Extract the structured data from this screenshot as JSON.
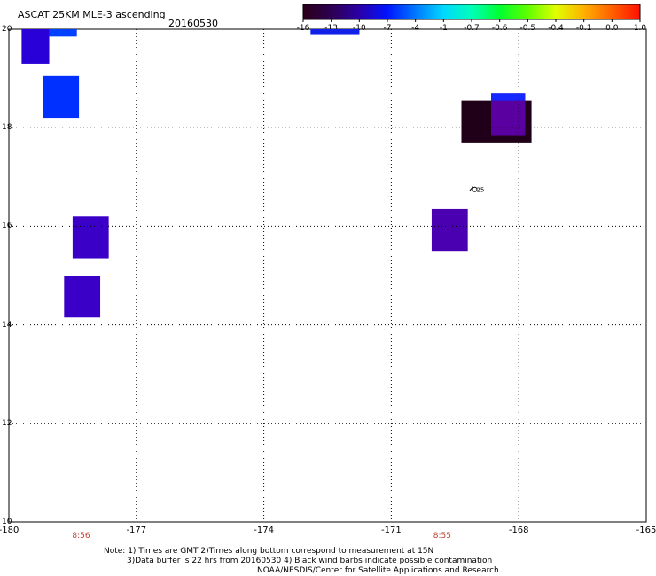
{
  "header": {
    "title": "ASCAT 25KM MLE-3 ascending",
    "date": "20160530"
  },
  "colorbar": {
    "labels": [
      "-16",
      "-13",
      "-10",
      "-7",
      "-4",
      "-1",
      "-0.7",
      "-0.6",
      "-0.5",
      "-0.4",
      "-0.1",
      "0.0",
      "1.0"
    ],
    "colors": [
      "#2a0018",
      "#2c0050",
      "#2a00a8",
      "#0014ff",
      "#0078ff",
      "#00d8ff",
      "#00ffb8",
      "#00ff30",
      "#60ff00",
      "#e0ff00",
      "#ffb000",
      "#ff6000",
      "#ff1000"
    ]
  },
  "axes": {
    "x_ticks": [
      "-180",
      "-177",
      "-174",
      "-171",
      "-168",
      "-165"
    ],
    "y_ticks": [
      "20",
      "18",
      "16",
      "14",
      "12",
      "10"
    ],
    "xlim": [
      -180,
      -165
    ],
    "ylim": [
      10,
      20
    ],
    "grid": true,
    "grid_style": "dotted"
  },
  "times": [
    {
      "label": "8:56",
      "lon": -178.3
    },
    {
      "label": "8:55",
      "lon": -169.8
    }
  ],
  "cells": [
    {
      "lon0": -179.7,
      "lon1": -179.05,
      "lat0": 19.3,
      "lat1": 20.0,
      "color": "#2a00d8"
    },
    {
      "lon0": -179.05,
      "lon1": -178.4,
      "lat0": 19.85,
      "lat1": 20.0,
      "color": "#0040ff"
    },
    {
      "lon0": -179.2,
      "lon1": -178.35,
      "lat0": 18.2,
      "lat1": 19.05,
      "color": "#0030ff"
    },
    {
      "lon0": -178.5,
      "lon1": -177.65,
      "lat0": 15.35,
      "lat1": 16.2,
      "color": "#3a00c8"
    },
    {
      "lon0": -178.7,
      "lon1": -177.85,
      "lat0": 14.15,
      "lat1": 15.0,
      "color": "#3a00c8"
    },
    {
      "lon0": -172.9,
      "lon1": -171.75,
      "lat0": 19.9,
      "lat1": 20.05,
      "color": "#1020e8"
    },
    {
      "lon0": -170.05,
      "lon1": -169.2,
      "lat0": 15.5,
      "lat1": 16.35,
      "color": "#4a00b0"
    },
    {
      "lon0": -169.35,
      "lon1": -167.7,
      "lat0": 17.7,
      "lat1": 18.55,
      "color": "#200018"
    },
    {
      "lon0": -168.65,
      "lon1": -167.85,
      "lat0": 17.85,
      "lat1": 18.7,
      "color": "#5a00a0"
    },
    {
      "lon0": -168.65,
      "lon1": -167.85,
      "lat0": 18.55,
      "lat1": 18.7,
      "color": "#1428ff"
    }
  ],
  "wind_barb": {
    "lon": -169.1,
    "lat": 16.75,
    "label": "25"
  },
  "notes": {
    "line1": "Note: 1) Times are GMT 2)Times along bottom correspond to measurement at 15N",
    "line2": "3)Data buffer is 22 hrs from 20160530 4) Black wind barbs indicate possible contamination",
    "line3": "NOAA/NESDIS/Center for Satellite Applications and Research"
  }
}
